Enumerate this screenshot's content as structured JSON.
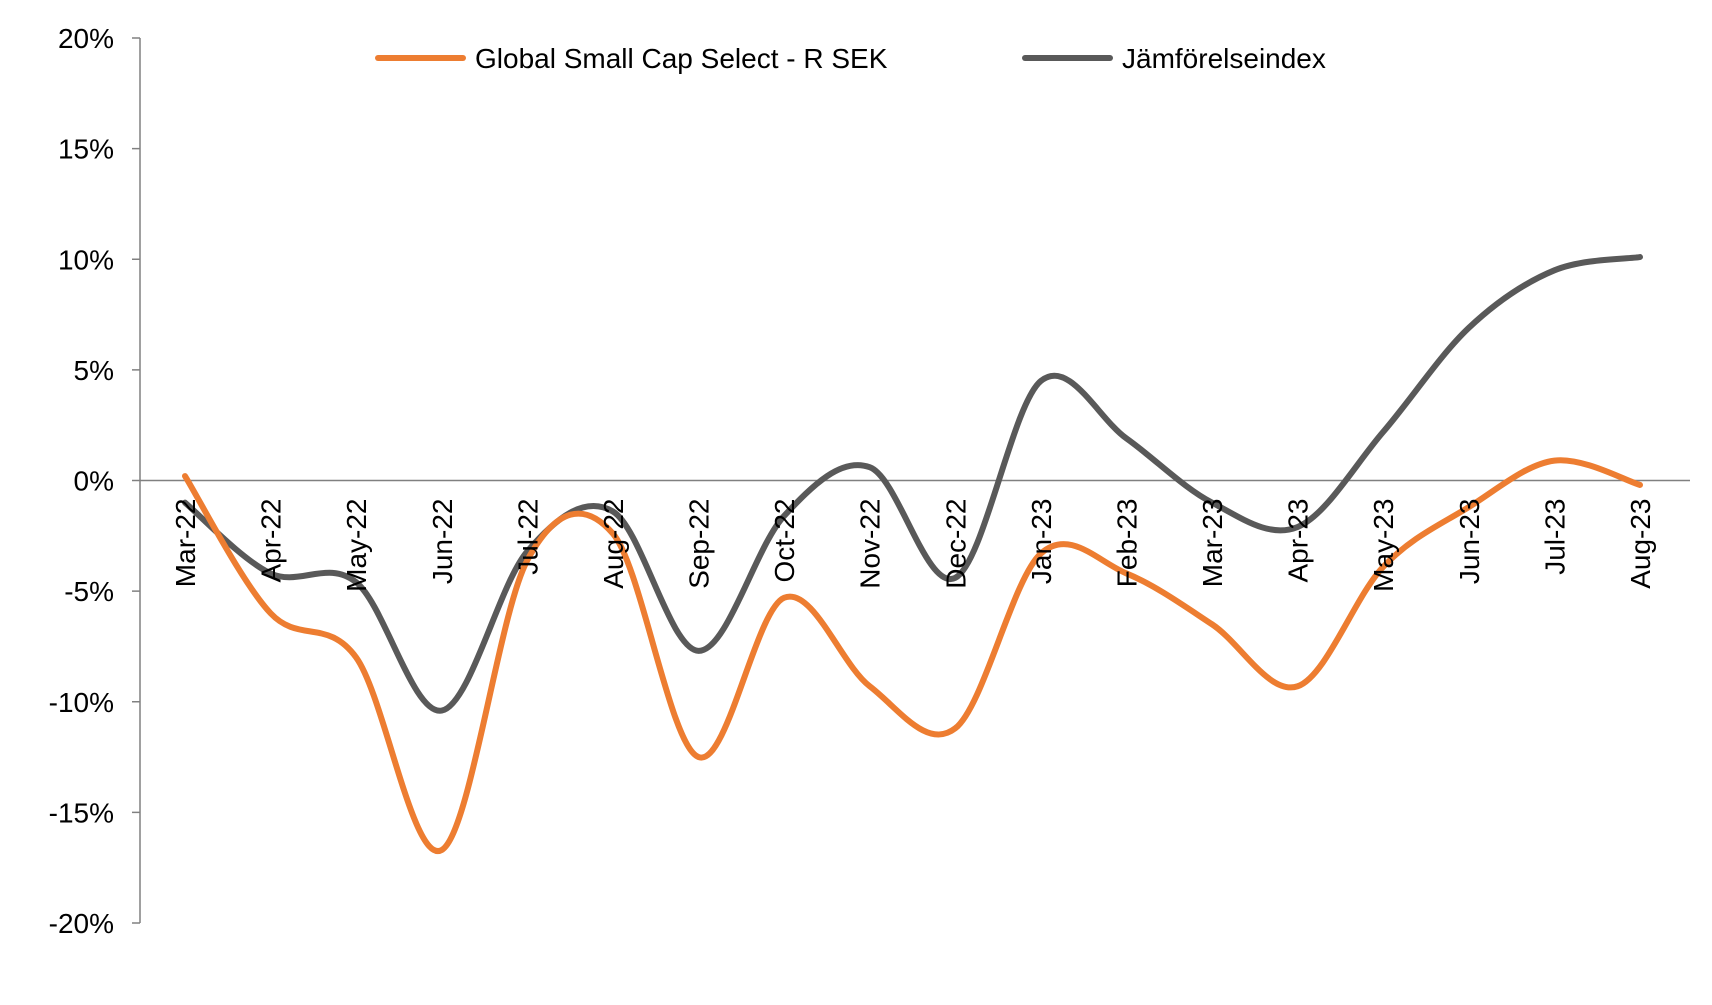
{
  "chart_data": {
    "type": "line",
    "title": "",
    "xlabel": "",
    "ylabel": "",
    "categories": [
      "Mar-22",
      "Apr-22",
      "May-22",
      "Jun-22",
      "Jul-22",
      "Aug-22",
      "Sep-22",
      "Oct-22",
      "Nov-22",
      "Dec-22",
      "Jan-23",
      "Feb-23",
      "Mar-23",
      "Apr-23",
      "May-23",
      "Jun-23",
      "Jul-23",
      "Aug-23"
    ],
    "ylim": [
      -20,
      20
    ],
    "yticks": [
      20,
      15,
      10,
      5,
      0,
      -5,
      -10,
      -15,
      -20
    ],
    "ytick_labels": [
      "20%",
      "15%",
      "10%",
      "5%",
      "0%",
      "-5%",
      "-10%",
      "-15%",
      "-20%"
    ],
    "grid": false,
    "legend_position": "top-center",
    "series": [
      {
        "name": "Global Small Cap Select - R SEK",
        "color": "#ED7D31",
        "values": [
          0.2,
          -6.0,
          -8.0,
          -16.7,
          -3.6,
          -2.4,
          -12.5,
          -5.3,
          -9.3,
          -11.2,
          -3.3,
          -4.2,
          -6.5,
          -9.3,
          -3.9,
          -1.2,
          0.9,
          -0.2
        ]
      },
      {
        "name": "Jämförelseindex",
        "color": "#595959",
        "values": [
          -1.0,
          -4.2,
          -4.6,
          -10.4,
          -3.2,
          -1.4,
          -7.7,
          -1.6,
          0.6,
          -4.4,
          4.5,
          1.9,
          -1.0,
          -2.1,
          2.2,
          6.9,
          9.5,
          10.1
        ]
      }
    ]
  }
}
